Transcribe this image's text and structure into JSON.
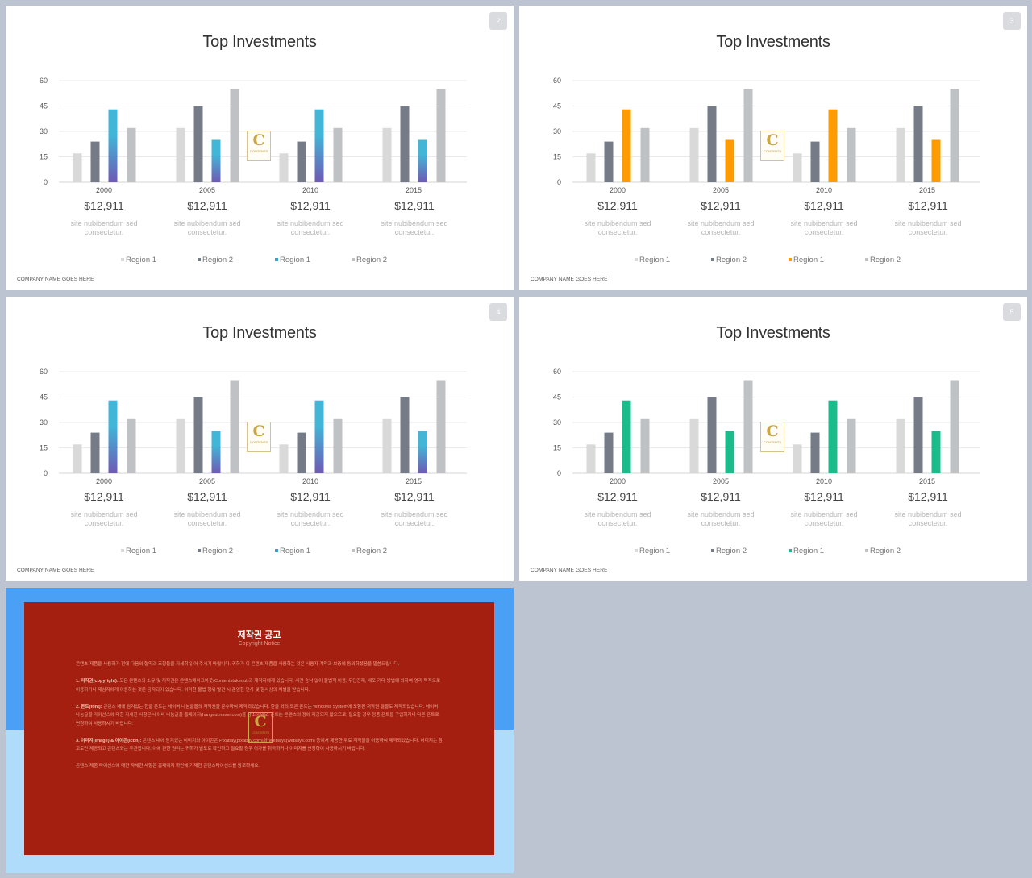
{
  "slides": [
    {
      "number": "2",
      "bar3_color": "gradient-blue",
      "legend3_color": "#3a9fd0"
    },
    {
      "number": "3",
      "bar3_color": "#fd9b00",
      "legend3_color": "#fd9b00"
    },
    {
      "number": "4",
      "bar3_color": "gradient-blue",
      "legend3_color": "#3a9fd0"
    },
    {
      "number": "5",
      "bar3_color": "#1cbb8c",
      "legend3_color": "#1cbb8c"
    }
  ],
  "common": {
    "title": "Top Investments",
    "footer": "COMPANY NAME GOES HERE",
    "amount": "$12,911",
    "desc_line1": "site nubibendum sed",
    "desc_line2": "consectetur.",
    "legend": [
      "Region 1",
      "Region 2",
      "Region 1",
      "Region 2"
    ],
    "logo_letter": "C",
    "logo_text": "CONTENTS"
  },
  "colors": {
    "series1": "#d9d9d9",
    "series2": "#767c87",
    "series4": "#bfc1c5",
    "blue_top": "#41b6d8",
    "blue_bottom": "#6f59b6"
  },
  "chart_data": {
    "type": "bar",
    "categories": [
      "2000",
      "2005",
      "2010",
      "2015"
    ],
    "series": [
      {
        "name": "Region 1",
        "values": [
          17,
          32,
          17,
          32
        ]
      },
      {
        "name": "Region 2",
        "values": [
          24,
          45,
          24,
          45
        ]
      },
      {
        "name": "Region 1",
        "values": [
          43,
          25,
          43,
          25
        ]
      },
      {
        "name": "Region 2",
        "values": [
          32,
          55,
          32,
          55
        ]
      }
    ],
    "ylim": [
      0,
      60
    ],
    "yticks": [
      "0",
      "15",
      "30",
      "45",
      "60"
    ],
    "legend_position": "bottom",
    "grid": true
  },
  "copyright": {
    "title": "저작권 공고",
    "subtitle": "Copyright Notice",
    "paragraphs": [
      {
        "bold": "",
        "text": "콘텐츠 제품을 사용하기 전에 다음의 협약과 조항들을 자세히 읽어 주시기 바랍니다. 귀하가 이 콘텐츠 제품을 사용하는 것은 사용자 계약과 보증에 동의하셨음을 말씀드립니다."
      },
      {
        "bold": "1. 저작권(copyright):",
        "text": " 모든 콘텐츠의 소유 및 저작권은 콘텐츠메이크아웃(Contentstakeout)과 제작자에게 있습니다. 사전 승낙 없이 불법적 이용, 무단전재, 배포 기타 방법에 의하여 영리 목적으로 이용하거나 제삼자에게 이용하는 것은 금지되어 있습니다. 이러한 불법 행위 발견 시 준엄한 민사 및 형사상의 처벌을 받습니다."
      },
      {
        "bold": "2. 폰트(font):",
        "text": " 콘텐츠 내에 담겨있는 한글 폰트는 네이버 나눔글꼴의 저작권을 준수하여 제작되었습니다. 한글 외의 모든 폰트는 Windows System에 포함된 저작권 글꼴로 제작되었습니다. 네이버 나눔글꼴 라이선스에 대한 자세한 사항은 네이버 나눔글꼴 홈페이지(hangeul.naver.com)를 참조하세요. 폰트는 콘텐츠의 정에 제공되지 않으므로, 필요할 경우 정품 폰트를 구입하거나 다른 폰트로 변경하여 사용하시기 바랍니다."
      },
      {
        "bold": "3. 이미지(image) & 아이콘(icon):",
        "text": " 콘텐츠 내에 담겨있는 이미지와 아이콘은 Pixabay(pixabay.com)와 Webalys(webalys.com) 등에서 제공한 무료 저작물을 이용하여 제작되었습니다. 이미지는 참고로만 제공되고 콘텐츠와는 무관합니다. 이에 관한 권리는 귀하가 별도로 확인하고 필요할 경우 허가를 취득하거나 이미지를 변경하여 사용하시기 바랍니다."
      },
      {
        "bold": "",
        "text": "콘텐츠 제품 라이선스에 대한 자세한 사항은 홈페이지 하단에 기재한 콘텐츠라이선스를 참조하세요."
      }
    ]
  }
}
